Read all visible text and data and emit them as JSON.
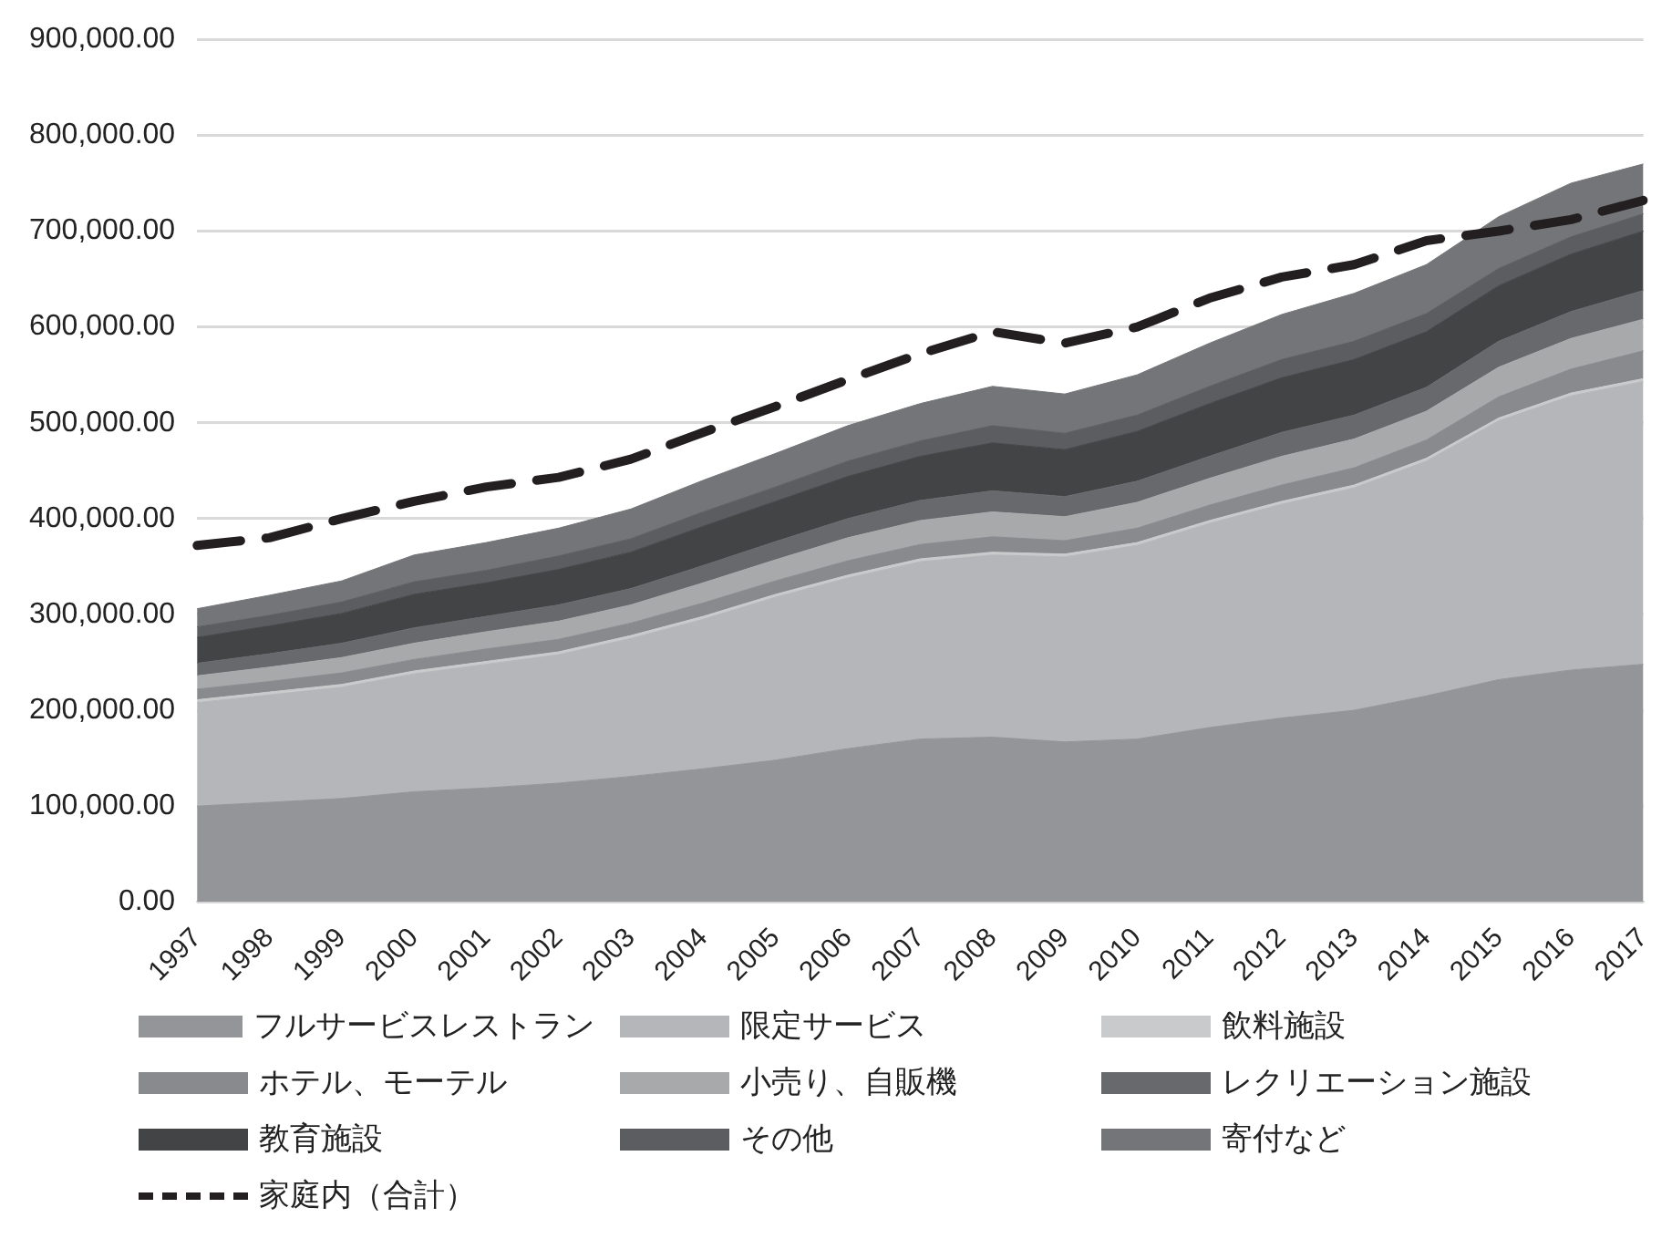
{
  "chart_data": {
    "type": "area",
    "stacked": true,
    "grid": "y",
    "legend": "bottom",
    "marker": "none",
    "categories": [
      "1997",
      "1998",
      "1999",
      "2000",
      "2001",
      "2002",
      "2003",
      "2004",
      "2005",
      "2006",
      "2007",
      "2008",
      "2009",
      "2010",
      "2011",
      "2012",
      "2013",
      "2014",
      "2015",
      "2016",
      "2017"
    ],
    "ylim": [
      0,
      900000
    ],
    "yticks": [
      {
        "value": 0,
        "label": "0.00"
      },
      {
        "value": 100000,
        "label": "100,000.00"
      },
      {
        "value": 200000,
        "label": "200,000.00"
      },
      {
        "value": 300000,
        "label": "300,000.00"
      },
      {
        "value": 400000,
        "label": "400,000.00"
      },
      {
        "value": 500000,
        "label": "500,000.00"
      },
      {
        "value": 600000,
        "label": "600,000.00"
      },
      {
        "value": 700000,
        "label": "700,000.00"
      },
      {
        "value": 800000,
        "label": "800,000.00"
      },
      {
        "value": 900000,
        "label": "900,000.00"
      }
    ],
    "series": [
      {
        "name": "フルサービスレストラン",
        "color": "#949598",
        "values": [
          100000,
          104000,
          108000,
          115000,
          119000,
          124000,
          131000,
          139000,
          148000,
          160000,
          170000,
          172000,
          167000,
          170000,
          182000,
          192000,
          200000,
          215000,
          232000,
          242000,
          248000
        ]
      },
      {
        "name": "限定サービス",
        "color": "#b5b6b9",
        "values": [
          108000,
          112000,
          116000,
          123000,
          129000,
          134000,
          144000,
          156000,
          170000,
          178000,
          185000,
          190000,
          193000,
          202000,
          213000,
          223000,
          232000,
          245000,
          270000,
          286000,
          295000
        ]
      },
      {
        "name": "飲料施設",
        "color": "#c9cacc",
        "values": [
          3000,
          3000,
          3000,
          3000,
          3000,
          3000,
          3000,
          3000,
          3000,
          3000,
          3000,
          3000,
          3000,
          3000,
          3000,
          3000,
          3000,
          3000,
          3000,
          3000,
          3000
        ]
      },
      {
        "name": "ホテル、モーテル",
        "color": "#898a8d",
        "values": [
          11000,
          11000,
          12000,
          12000,
          13000,
          13000,
          13000,
          14000,
          14000,
          15000,
          15000,
          16000,
          14000,
          15000,
          16000,
          17000,
          18000,
          19000,
          22000,
          25000,
          29000
        ]
      },
      {
        "name": "小売り、自販機",
        "color": "#a7a9ab",
        "values": [
          14000,
          15000,
          16000,
          17000,
          18000,
          19000,
          19000,
          21000,
          22000,
          24000,
          25000,
          26000,
          25000,
          27000,
          28000,
          30000,
          30000,
          30000,
          31000,
          32000,
          33000
        ]
      },
      {
        "name": "レクリエーション施設",
        "color": "#68696c",
        "values": [
          13000,
          14000,
          15000,
          16000,
          16000,
          17000,
          17000,
          18000,
          19000,
          20000,
          21000,
          22000,
          21000,
          22000,
          23000,
          25000,
          25000,
          25000,
          27000,
          28000,
          30000
        ]
      },
      {
        "name": "教育施設",
        "color": "#434446",
        "values": [
          27000,
          29000,
          31000,
          35000,
          35000,
          37000,
          38000,
          41000,
          42000,
          44000,
          46000,
          50000,
          49000,
          52000,
          55000,
          57000,
          58000,
          58000,
          58000,
          60000,
          62000
        ]
      },
      {
        "name": "その他",
        "color": "#5c5d60",
        "values": [
          11000,
          11000,
          12000,
          13000,
          13000,
          14000,
          14000,
          15000,
          15000,
          16000,
          16000,
          18000,
          17000,
          17000,
          18000,
          19000,
          19000,
          19000,
          18000,
          18000,
          18000
        ]
      },
      {
        "name": "寄付など",
        "color": "#747578",
        "values": [
          19000,
          21000,
          22000,
          28000,
          29000,
          29000,
          31000,
          33000,
          35000,
          37000,
          39000,
          41000,
          41000,
          42000,
          45000,
          47000,
          50000,
          51000,
          54000,
          56000,
          52000
        ]
      },
      {
        "name": "家庭内（合計）",
        "type": "line",
        "line_style": "dashed",
        "color": "#231f20",
        "values": [
          372000,
          380000,
          400000,
          418000,
          433000,
          443000,
          462000,
          490000,
          517000,
          545000,
          572000,
          595000,
          583000,
          600000,
          630000,
          652000,
          665000,
          690000,
          700000,
          712000,
          732000
        ]
      }
    ]
  }
}
